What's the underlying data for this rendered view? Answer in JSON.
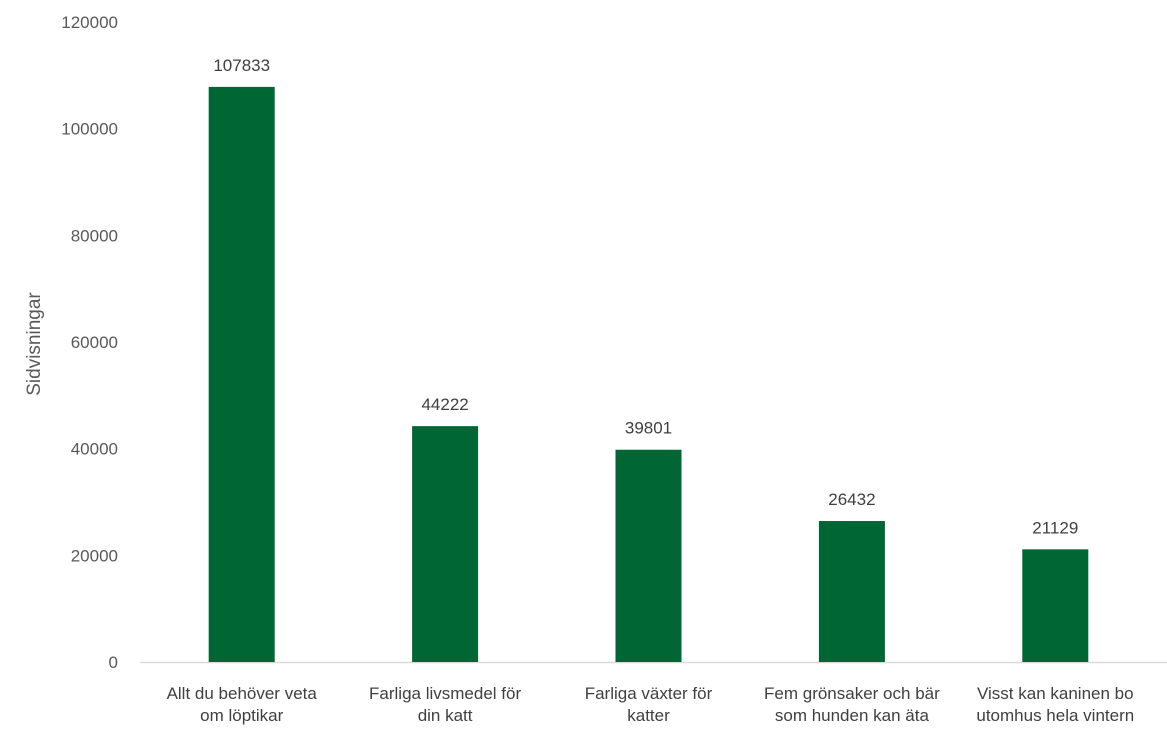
{
  "chart_data": {
    "type": "bar",
    "title": "",
    "xlabel": "",
    "ylabel": "Sidvisningar",
    "ylim": [
      0,
      120000
    ],
    "yticks": [
      0,
      20000,
      40000,
      60000,
      80000,
      100000,
      120000
    ],
    "grid": false,
    "legend": "none",
    "bar_color": "#006633",
    "categories": [
      [
        "Allt du behöver veta",
        "om löptikar"
      ],
      [
        "Farliga livsmedel för",
        "din katt"
      ],
      [
        "Farliga växter för",
        "katter"
      ],
      [
        "Fem grönsaker och bär",
        "som hunden kan äta"
      ],
      [
        "Visst kan kaninen bo",
        "utomhus hela vintern"
      ]
    ],
    "values": [
      107833,
      44222,
      39801,
      26432,
      21129
    ],
    "data_labels": [
      "107833",
      "44222",
      "39801",
      "26432",
      "21129"
    ]
  }
}
